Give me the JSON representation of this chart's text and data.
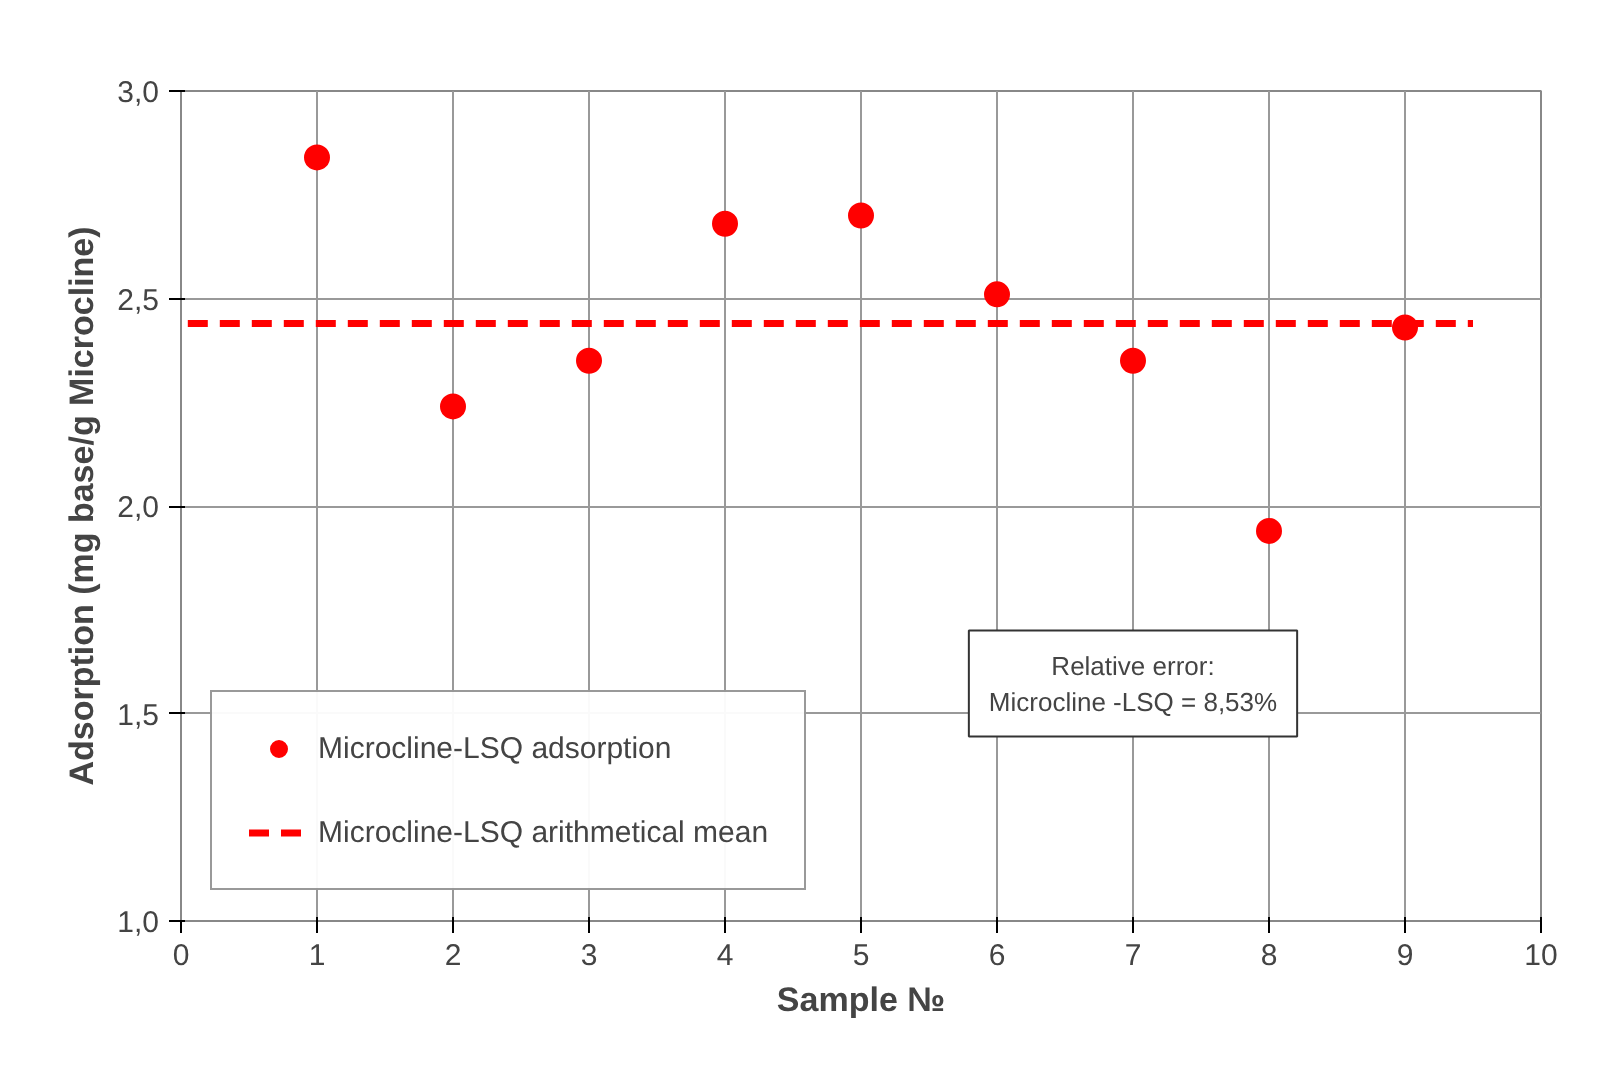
{
  "chart_data": {
    "type": "scatter",
    "xlabel": "Sample №",
    "ylabel": "Adsorption (mg base/g Microcline)",
    "x": [
      1,
      2,
      3,
      4,
      5,
      6,
      7,
      8,
      9
    ],
    "series": [
      {
        "name": "Microcline-LSQ adsorption",
        "color": "#ff0000",
        "values": [
          2.84,
          2.24,
          2.35,
          2.68,
          2.7,
          2.51,
          2.35,
          1.94,
          2.43
        ],
        "marker": "circle"
      },
      {
        "name": "Microcline-LSQ arithmetical mean",
        "type": "line",
        "color": "#ff0000",
        "line_style": "dashed",
        "x": [
          0.05,
          9.5
        ],
        "values": [
          2.44,
          2.44
        ]
      }
    ],
    "xlim": [
      0,
      10
    ],
    "ylim": [
      1.0,
      3.0
    ],
    "xticks": [
      0,
      1,
      2,
      3,
      4,
      5,
      6,
      7,
      8,
      9,
      10
    ],
    "yticks": [
      {
        "value": 1.0,
        "label": "1,0"
      },
      {
        "value": 1.5,
        "label": "1,5"
      },
      {
        "value": 2.0,
        "label": "2,0"
      },
      {
        "value": 2.5,
        "label": "2,5"
      },
      {
        "value": 3.0,
        "label": "3,0"
      }
    ],
    "grid": true,
    "legend": "bottom left",
    "annotations": [
      "Relative error:\nMicrocline -LSQ = 8,53%"
    ]
  }
}
